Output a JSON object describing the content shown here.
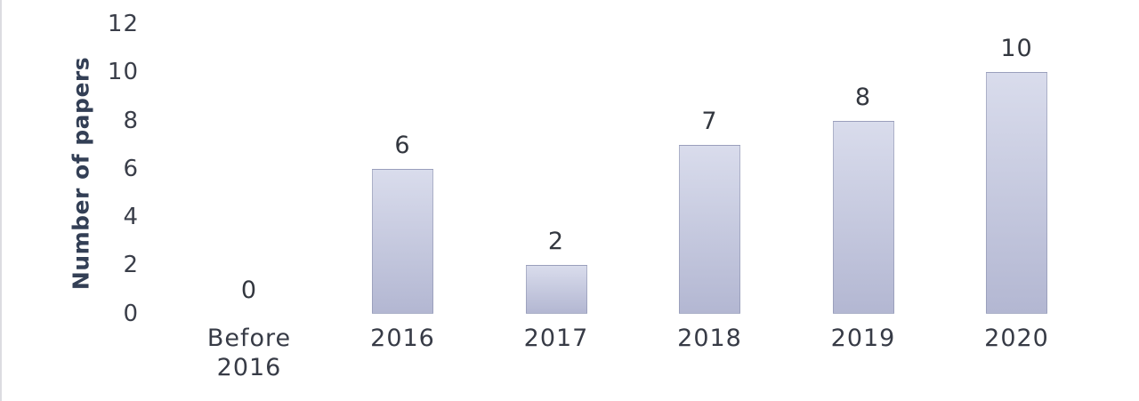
{
  "chart_data": {
    "type": "bar",
    "title": "",
    "categories": [
      "Before 2016",
      "2016",
      "2017",
      "2018",
      "2019",
      "2020"
    ],
    "values": [
      0,
      6,
      2,
      7,
      8,
      10
    ],
    "data_labels": [
      "0",
      "6",
      "2",
      "7",
      "8",
      "10"
    ],
    "xlabel": "",
    "ylabel": "Number of papers",
    "ylim": [
      0,
      12
    ],
    "yticks": [
      0,
      2,
      4,
      6,
      8,
      10,
      12
    ],
    "grid": false,
    "legend": "none",
    "colors": {
      "bar_gradient_top": "#d9dcec",
      "bar_gradient_bottom": "#b3b7d2",
      "bar_border": "#8287a5",
      "tick_text": "#3a3e49",
      "category_text": "#373b46",
      "value_text": "#33373f",
      "axis_title_text": "#333f55",
      "figure_edge": "#dcdce1",
      "background": "#ffffff"
    }
  }
}
